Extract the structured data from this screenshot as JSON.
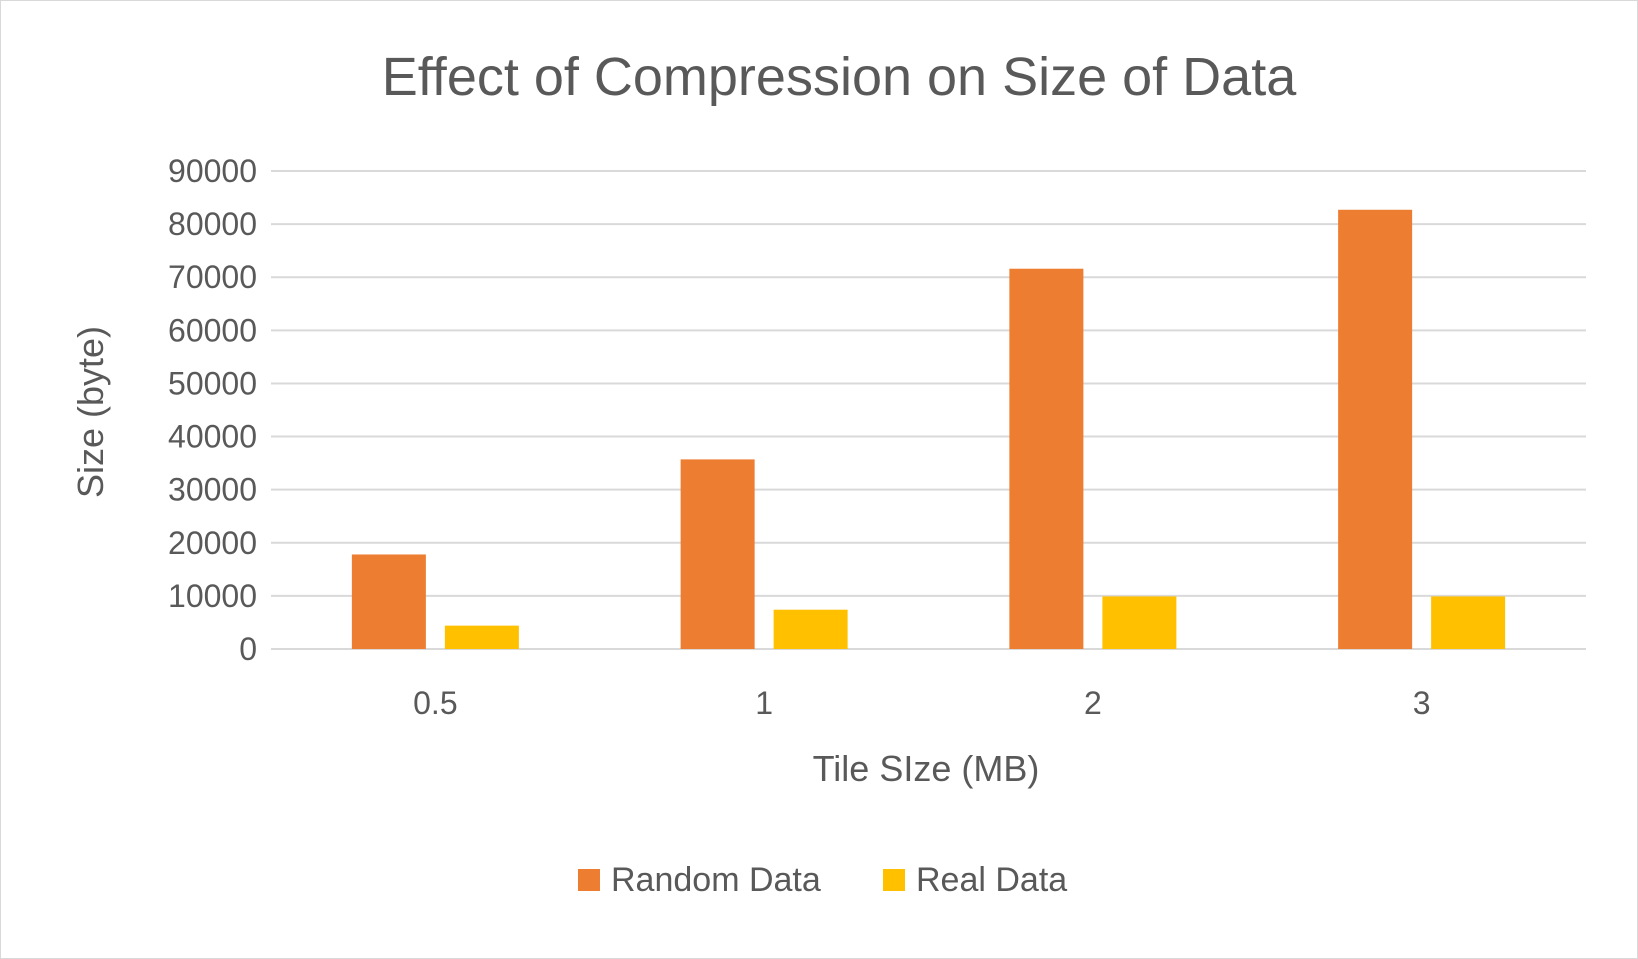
{
  "chart_data": {
    "type": "bar",
    "title": "Effect of Compression on Size of Data",
    "xlabel": "Tile SIze (MB)",
    "ylabel": "Size (byte)",
    "categories": [
      "0.5",
      "1",
      "2",
      "3"
    ],
    "series": [
      {
        "name": "Random Data",
        "values": [
          17800,
          35700,
          71600,
          82700
        ],
        "color": "#ED7D31"
      },
      {
        "name": "Real Data",
        "values": [
          4400,
          7400,
          9900,
          9900
        ],
        "color": "#FFC000"
      }
    ],
    "ylim": [
      0,
      90000
    ],
    "yticks": [
      "0",
      "10000",
      "20000",
      "30000",
      "40000",
      "50000",
      "60000",
      "70000",
      "80000",
      "90000"
    ],
    "grid": true,
    "legend_position": "bottom"
  }
}
